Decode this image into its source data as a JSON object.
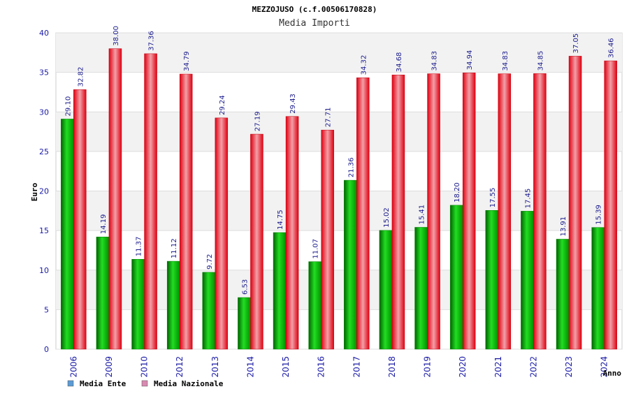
{
  "chart_data": {
    "type": "bar",
    "title": "MEZZOJUSO (c.f.00506170828)",
    "subtitle": "Media Importi",
    "xlabel": "Anno",
    "ylabel": "Euro",
    "ylim": [
      0,
      40
    ],
    "yticks": [
      0,
      5,
      10,
      15,
      20,
      25,
      30,
      35,
      40
    ],
    "categories": [
      "2006",
      "2009",
      "2010",
      "2012",
      "2013",
      "2014",
      "2015",
      "2016",
      "2017",
      "2018",
      "2019",
      "2020",
      "2021",
      "2022",
      "2023",
      "2024"
    ],
    "series": [
      {
        "name": "Media Ente",
        "color": "#00b400",
        "legend_color": "#5b9bd5",
        "values": [
          29.1,
          14.19,
          11.37,
          11.12,
          9.72,
          6.53,
          14.75,
          11.07,
          21.36,
          15.02,
          15.41,
          18.2,
          17.55,
          17.45,
          13.91,
          15.39
        ],
        "labels": [
          "29.10",
          "14.19",
          "11.37",
          "11.12",
          "9.72",
          "6.53",
          "14.75",
          "11.07",
          "21.36",
          "15.02",
          "15.41",
          "18.20",
          "17.55",
          "17.45",
          "13.91",
          "15.39"
        ]
      },
      {
        "name": "Media Nazionale",
        "color": "#e8202a",
        "legend_color": "#d98ab0",
        "values": [
          32.82,
          38.0,
          37.36,
          34.79,
          29.24,
          27.19,
          29.43,
          27.71,
          34.32,
          34.68,
          34.83,
          34.94,
          34.83,
          34.85,
          37.05,
          36.46
        ],
        "labels": [
          "32.82",
          "38.00",
          "37.36",
          "34.79",
          "29.24",
          "27.19",
          "29.43",
          "27.71",
          "34.32",
          "34.68",
          "34.83",
          "34.94",
          "34.83",
          "34.85",
          "37.05",
          "36.46"
        ]
      }
    ],
    "grid": true,
    "legend_position": "bottom-left"
  }
}
